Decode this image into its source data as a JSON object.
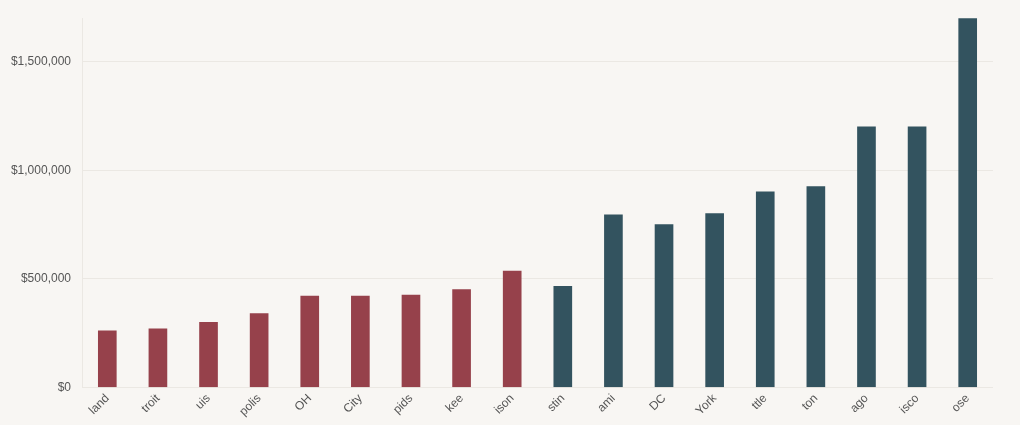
{
  "chart_data": {
    "type": "bar",
    "categories": [
      "land",
      "troit",
      "uis",
      "polis",
      "OH",
      "City",
      "pids",
      "kee",
      "ison",
      "stin",
      "ami",
      "DC",
      "York",
      "ttle",
      "ton",
      "ago",
      "isco",
      "ose"
    ],
    "values": [
      260000,
      270000,
      300000,
      340000,
      420000,
      420000,
      425000,
      450000,
      535000,
      465000,
      795000,
      750000,
      800000,
      900000,
      925000,
      1200000,
      1200000,
      1700000
    ],
    "colors": [
      "#96414b",
      "#96414b",
      "#96414b",
      "#96414b",
      "#96414b",
      "#96414b",
      "#96414b",
      "#96414b",
      "#96414b",
      "#33535f",
      "#33535f",
      "#33535f",
      "#33535f",
      "#33535f",
      "#33535f",
      "#33535f",
      "#33535f",
      "#33535f"
    ],
    "ylim": [
      0,
      1700000
    ],
    "yticks": [
      {
        "value": 0,
        "label": "$0"
      },
      {
        "value": 500000,
        "label": "$500,000"
      },
      {
        "value": 1000000,
        "label": "$1,000,000"
      },
      {
        "value": 1500000,
        "label": "$1,500,000"
      }
    ],
    "grid": "y"
  }
}
